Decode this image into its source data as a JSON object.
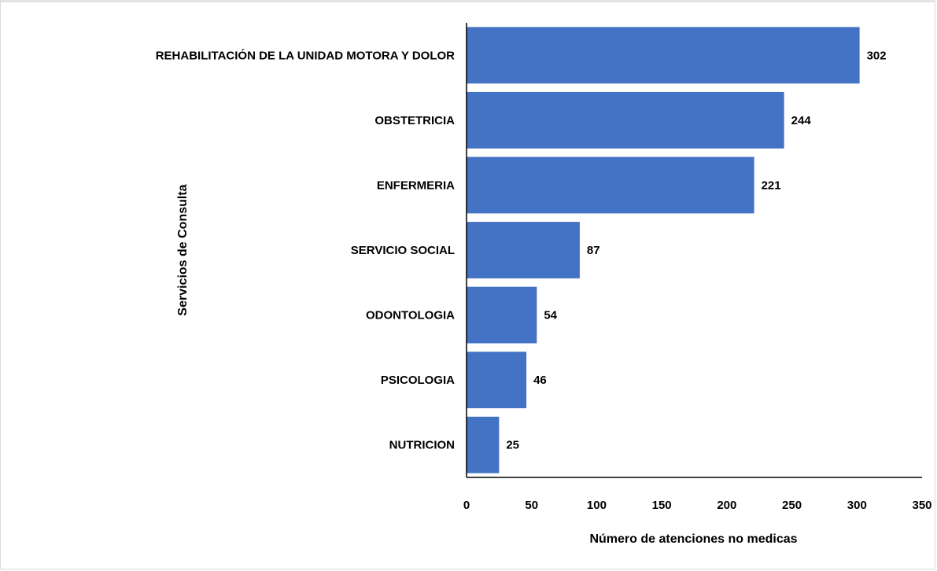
{
  "chart_data": {
    "type": "bar",
    "orientation": "horizontal",
    "categories": [
      "REHABILITACIÓN DE LA UNIDAD MOTORA Y DOLOR",
      "OBSTETRICIA",
      "ENFERMERIA",
      "SERVICIO SOCIAL",
      "ODONTOLOGIA",
      "PSICOLOGIA",
      "NUTRICION"
    ],
    "values": [
      302,
      244,
      221,
      87,
      54,
      46,
      25
    ],
    "data_labels": [
      "302",
      "244",
      "221",
      "87",
      "54",
      "46",
      "25"
    ],
    "title": "",
    "xlabel": "Número de atenciones no medicas",
    "ylabel": "Servicios de Consulta",
    "xlim": [
      0,
      350
    ],
    "xticks": [
      0,
      50,
      100,
      150,
      200,
      250,
      300,
      350
    ],
    "grid": false,
    "legend": "none",
    "bar_color": "#4472C4"
  }
}
